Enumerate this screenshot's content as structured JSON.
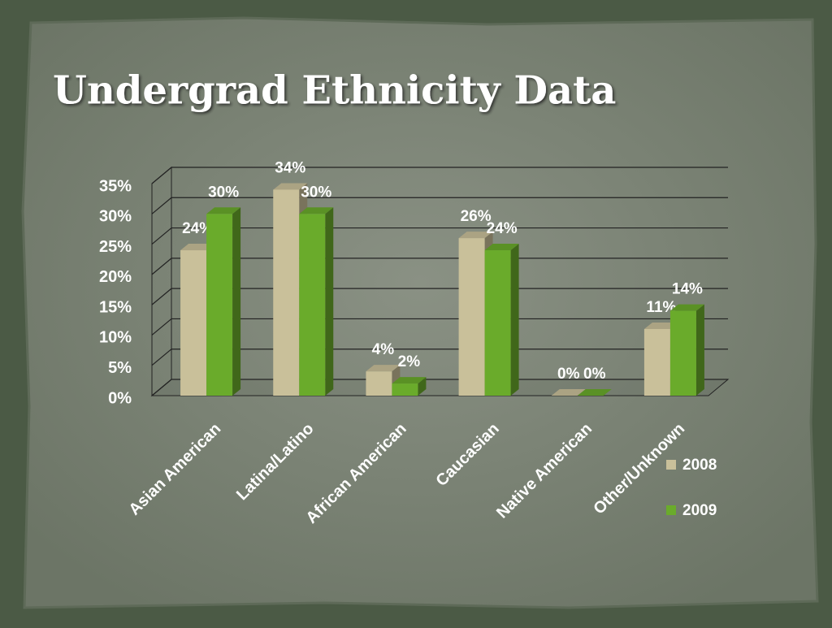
{
  "chart_data": {
    "type": "bar3d",
    "title": "Undergrad Ethnicity Data",
    "categories": [
      "Asian American",
      "Latina/Latino",
      "African American",
      "Caucasian",
      "Native American",
      "Other/Unknown"
    ],
    "series": [
      {
        "name": "2008",
        "color": "#c9c09a",
        "values": [
          24,
          34,
          4,
          26,
          0,
          11
        ],
        "value_labels": [
          "24%",
          "34%",
          "4%",
          "26%",
          "0%",
          "11%"
        ]
      },
      {
        "name": "2009",
        "color": "#6aab2b",
        "values": [
          30,
          30,
          2,
          24,
          0,
          14
        ],
        "value_labels": [
          "30%",
          "30%",
          "2%",
          "24%",
          "0%",
          "14%"
        ]
      }
    ],
    "ylim": [
      0,
      35
    ],
    "yticks": [
      {
        "value": 0,
        "label": "0%"
      },
      {
        "value": 5,
        "label": "5%"
      },
      {
        "value": 10,
        "label": "10%"
      },
      {
        "value": 15,
        "label": "15%"
      },
      {
        "value": 20,
        "label": "20%"
      },
      {
        "value": 25,
        "label": "25%"
      },
      {
        "value": 30,
        "label": "30%"
      },
      {
        "value": 35,
        "label": "35%"
      }
    ],
    "grid": true,
    "legend": "right"
  }
}
